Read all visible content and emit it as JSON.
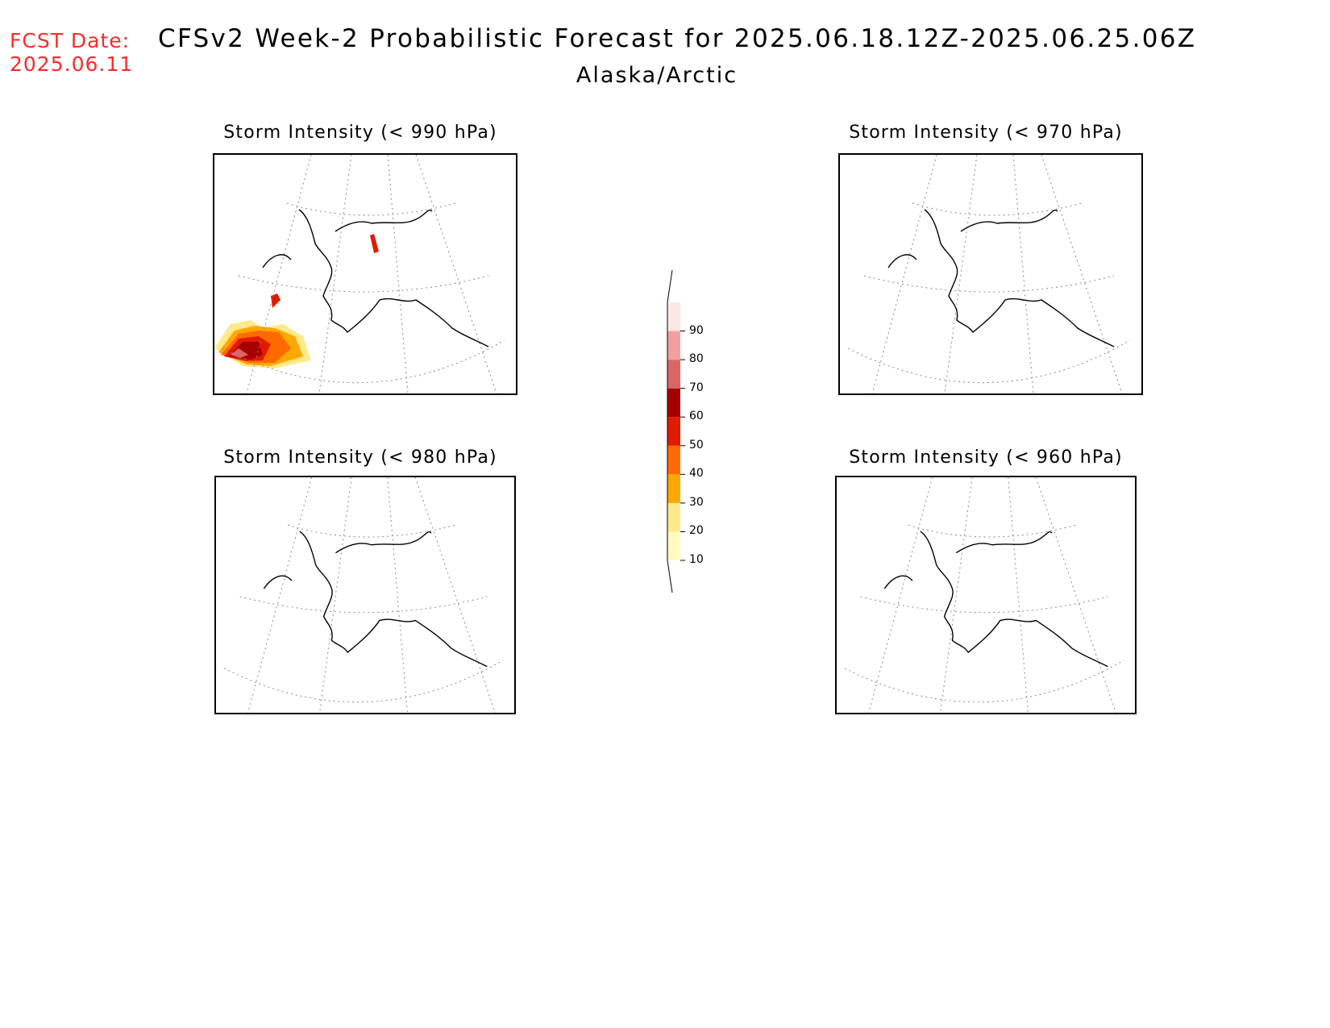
{
  "header": {
    "fcst_label": "FCST Date:",
    "fcst_date": "2025.06.11",
    "title": "CFSv2 Week-2 Probabilistic Forecast for 2025.06.18.12Z-2025.06.25.06Z",
    "subtitle": "Alaska/Arctic"
  },
  "panels": [
    {
      "id": "p990",
      "title": "Storm Intensity (< 990 hPa)"
    },
    {
      "id": "p970",
      "title": "Storm Intensity (< 970 hPa)"
    },
    {
      "id": "p980",
      "title": "Storm Intensity (< 980 hPa)"
    },
    {
      "id": "p960",
      "title": "Storm Intensity (< 960 hPa)"
    }
  ],
  "colorbar": {
    "levels": [
      "10",
      "20",
      "30",
      "40",
      "50",
      "60",
      "70",
      "80",
      "90"
    ],
    "colors": [
      "#fffbc0",
      "#ffe98a",
      "#ffa800",
      "#ff6a00",
      "#e31a00",
      "#a60000",
      "#dc6464",
      "#f0a0a0",
      "#fde6e6"
    ]
  }
}
